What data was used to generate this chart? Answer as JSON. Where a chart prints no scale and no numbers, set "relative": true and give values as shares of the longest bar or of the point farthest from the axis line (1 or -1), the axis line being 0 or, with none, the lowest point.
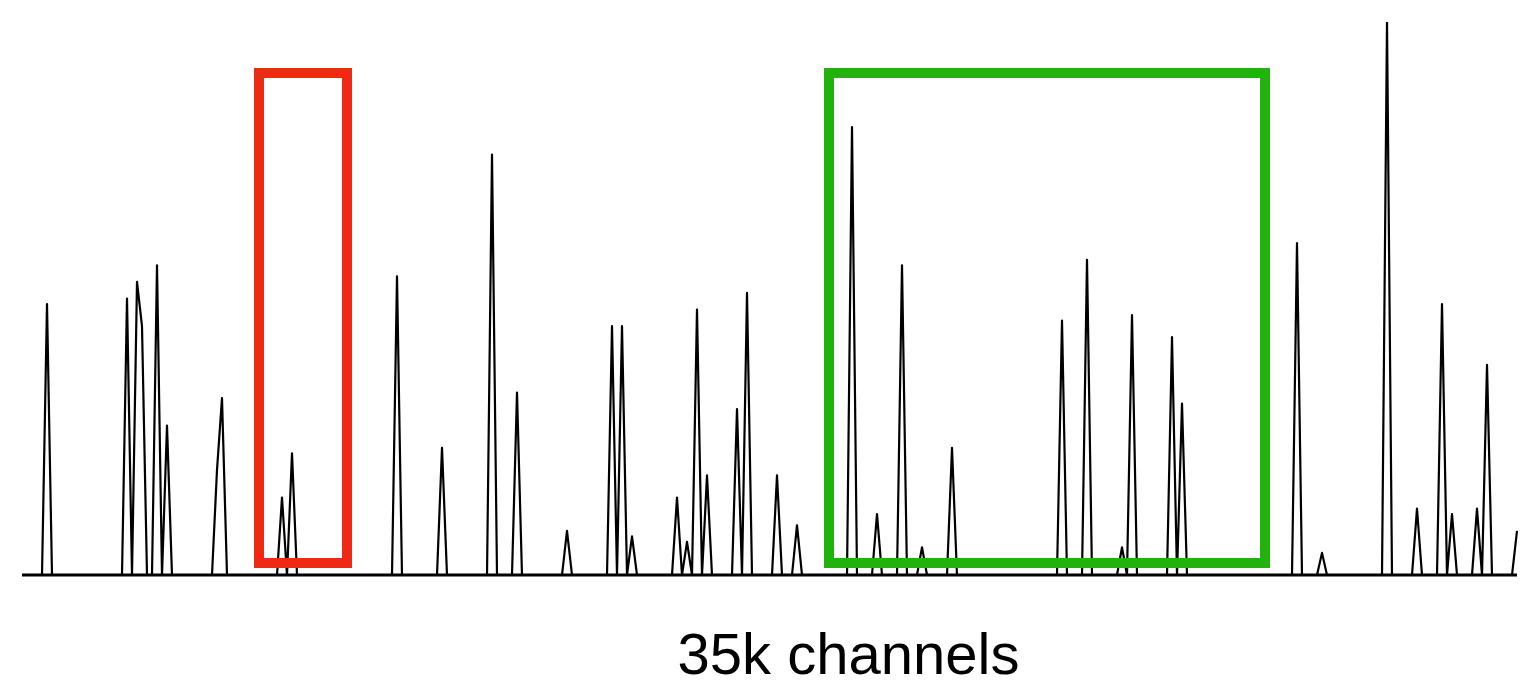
{
  "chart_data": {
    "type": "line",
    "relative": true,
    "xlabel": "35k channels",
    "categories": [
      null,
      null,
      null,
      null,
      null,
      null,
      null,
      null,
      null,
      null,
      null,
      null,
      null,
      null,
      null,
      null,
      null,
      null,
      null,
      null,
      null,
      null,
      null,
      null,
      null,
      null,
      null,
      null,
      null,
      null,
      null,
      null,
      null,
      null,
      null,
      null,
      null,
      null,
      null,
      null,
      null,
      null,
      null,
      null,
      null,
      null,
      null,
      null,
      null,
      null,
      null,
      null,
      null,
      null,
      null,
      null,
      null,
      null,
      null,
      null,
      null,
      null,
      null,
      null,
      null,
      null,
      null,
      null,
      null,
      null,
      null,
      null,
      null,
      null,
      null,
      null,
      null,
      null,
      null,
      null,
      null,
      null,
      null,
      null,
      null,
      null,
      null,
      null,
      null,
      null,
      null,
      null,
      null,
      null,
      null,
      null,
      null,
      null,
      null,
      null,
      null,
      null,
      null,
      null,
      null,
      null,
      null,
      null,
      null,
      null,
      null,
      null,
      null,
      null,
      null,
      null,
      null,
      null,
      null,
      null,
      null,
      null,
      null,
      null,
      null,
      null,
      null,
      null,
      null,
      null,
      null,
      null,
      null,
      null,
      null,
      null,
      null,
      null,
      null,
      null,
      null,
      null,
      null,
      null,
      null,
      null,
      null,
      null,
      null,
      null,
      null,
      null,
      null,
      null,
      null,
      null,
      null,
      null,
      null,
      null,
      null,
      null,
      null,
      null,
      null,
      null,
      null,
      null,
      null,
      null,
      null,
      null,
      null,
      null,
      null,
      null,
      null,
      null,
      null,
      null,
      null,
      null,
      null,
      null,
      null,
      null,
      null,
      null,
      null,
      null,
      null,
      null,
      null,
      null,
      null,
      null,
      null,
      null,
      null,
      null,
      null,
      null,
      null,
      null,
      null,
      null,
      null,
      null,
      null,
      null,
      null,
      null,
      null,
      null,
      null,
      null,
      null,
      null,
      null,
      null,
      null,
      null,
      null,
      null,
      null,
      null,
      null,
      null,
      null,
      null,
      null,
      null,
      null,
      null,
      null,
      null,
      null,
      null,
      null,
      null,
      null,
      null,
      null,
      null,
      null,
      null,
      null,
      null,
      null,
      null,
      null,
      null,
      null,
      null,
      null,
      null,
      null,
      null,
      null,
      null,
      null,
      null,
      null,
      null,
      null,
      null,
      null,
      null,
      null,
      null,
      null,
      null,
      null,
      null,
      null,
      null,
      null,
      null,
      null,
      null,
      null,
      null,
      null,
      null,
      null,
      null,
      null,
      null,
      null,
      null,
      null,
      null,
      null,
      null,
      null,
      null,
      null,
      null,
      null,
      null
    ],
    "series": [
      {
        "color": "#000000",
        "values": [
          0,
          0,
          0,
          0,
          0,
          0.49,
          0,
          0,
          0,
          0,
          0,
          0,
          0,
          0,
          0,
          0,
          0,
          0,
          0,
          0,
          0,
          0.5,
          0,
          0.53,
          0.45,
          0,
          0,
          0.56,
          0,
          0.27,
          0,
          0,
          0,
          0,
          0,
          0,
          0,
          0,
          0,
          0.19,
          0.32,
          0,
          0,
          0,
          0,
          0,
          0,
          0,
          0,
          0,
          0,
          0,
          0.14,
          0,
          0.22,
          0,
          0,
          0,
          0,
          0,
          0,
          0,
          0,
          0,
          0,
          0,
          0,
          0,
          0,
          0,
          0,
          0,
          0,
          0,
          0,
          0.54,
          0,
          0,
          0,
          0,
          0,
          0,
          0,
          0,
          0.23,
          0,
          0,
          0,
          0,
          0,
          0,
          0,
          0,
          0,
          0.76,
          0,
          0,
          0,
          0,
          0.33,
          0,
          0,
          0,
          0,
          0,
          0,
          0,
          0,
          0,
          0.08,
          0,
          0,
          0,
          0,
          0,
          0,
          0,
          0,
          0.45,
          0,
          0.45,
          0,
          0.07,
          0,
          0,
          0,
          0,
          0,
          0,
          0,
          0,
          0.14,
          0,
          0.06,
          0,
          0.48,
          0,
          0.18,
          0,
          0,
          0,
          0,
          0,
          0.3,
          0,
          0.51,
          0,
          0,
          0,
          0,
          0,
          0.18,
          0,
          0,
          0,
          0.09,
          0,
          0,
          0,
          0,
          0,
          0,
          0,
          0,
          0,
          0,
          0.81,
          0,
          0,
          0,
          0,
          0.11,
          0,
          0,
          0,
          0,
          0.56,
          0,
          0,
          0,
          0.05,
          0,
          0,
          0,
          0,
          0,
          0.23,
          0,
          0,
          0,
          0,
          0,
          0,
          0,
          0,
          0,
          0,
          0,
          0,
          0,
          0,
          0,
          0,
          0,
          0,
          0,
          0,
          0,
          0.46,
          0,
          0,
          0,
          0,
          0.57,
          0,
          0,
          0,
          0,
          0,
          0,
          0.05,
          0,
          0.47,
          0,
          0,
          0,
          0,
          0,
          0,
          0,
          0.43,
          0,
          0.31,
          0,
          0,
          0,
          0,
          0,
          0,
          0,
          0,
          0,
          0,
          0,
          0,
          0,
          0,
          0,
          0,
          0,
          0,
          0,
          0,
          0,
          0,
          0.6,
          0,
          0,
          0,
          0,
          0.04,
          0,
          0,
          0,
          0,
          0,
          0,
          0,
          0,
          0,
          0,
          0,
          0,
          1,
          0,
          0,
          0,
          0,
          0,
          0.12,
          0,
          0,
          0,
          0,
          0.49,
          0,
          0.11,
          0,
          0,
          0,
          0,
          0.12,
          0,
          0.38,
          0,
          0,
          0,
          0,
          0,
          0.08
        ]
      }
    ]
  }
}
